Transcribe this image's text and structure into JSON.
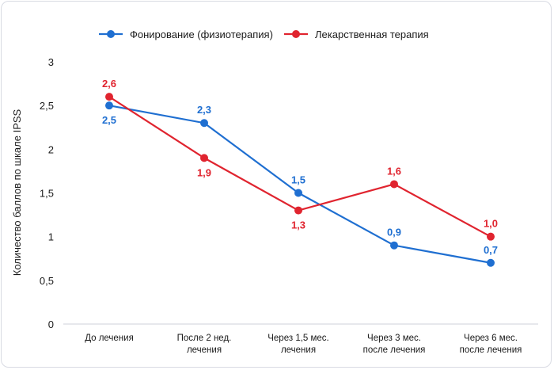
{
  "chart_data": {
    "type": "line",
    "ylabel": "Количество баллов по шкале IPSS",
    "xlabel": "",
    "ylim": [
      0,
      3
    ],
    "yticks": [
      "0",
      "0,5",
      "1",
      "1,5",
      "2",
      "2,5",
      "3"
    ],
    "ytick_values": [
      0,
      0.5,
      1,
      1.5,
      2,
      2.5,
      3
    ],
    "categories": [
      [
        "До лечения"
      ],
      [
        "После 2 нед.",
        "лечения"
      ],
      [
        "Через 1,5 мес.",
        "лечения"
      ],
      [
        "Через 3 мес.",
        "после лечения"
      ],
      [
        "Через 6 мес.",
        "после лечения"
      ]
    ],
    "series": [
      {
        "name": "Фонирование (физиотерапия)",
        "color": "#1f6fd1",
        "values": [
          2.5,
          2.3,
          1.5,
          0.9,
          0.7
        ],
        "labels": [
          "2,5",
          "2,3",
          "1,5",
          "0,9",
          "0,7"
        ],
        "label_pos": [
          "below",
          "above",
          "above",
          "above",
          "above"
        ]
      },
      {
        "name": "Лекарственная терапия",
        "color": "#e0242f",
        "values": [
          2.6,
          1.9,
          1.3,
          1.6,
          1.0
        ],
        "labels": [
          "2,6",
          "1,9",
          "1,3",
          "1,6",
          "1,0"
        ],
        "label_pos": [
          "above",
          "below",
          "below",
          "above",
          "above"
        ]
      }
    ],
    "grid": false,
    "legend_position": "top-center"
  }
}
